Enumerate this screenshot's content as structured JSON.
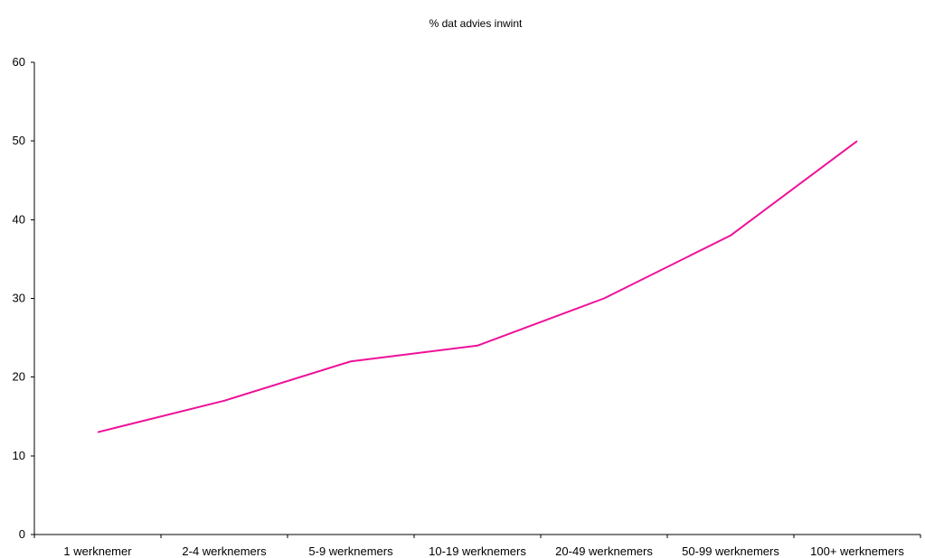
{
  "chart_data": {
    "type": "line",
    "title": "% dat advies inwint",
    "xlabel": "",
    "ylabel": "",
    "categories": [
      "1 werknemer",
      "2-4 werknemers",
      "5-9 werknemers",
      "10-19 werknemers",
      "20-49 werknemers",
      "50-99 werknemers",
      "100+ werknemers"
    ],
    "series": [
      {
        "values": [
          13,
          17,
          22,
          24,
          30,
          38,
          50
        ],
        "color": "#ee1199"
      }
    ],
    "ylim": [
      0,
      60
    ],
    "yticks": [
      0,
      10,
      20,
      30,
      40,
      50,
      60
    ],
    "grid": false,
    "legend": "none"
  }
}
